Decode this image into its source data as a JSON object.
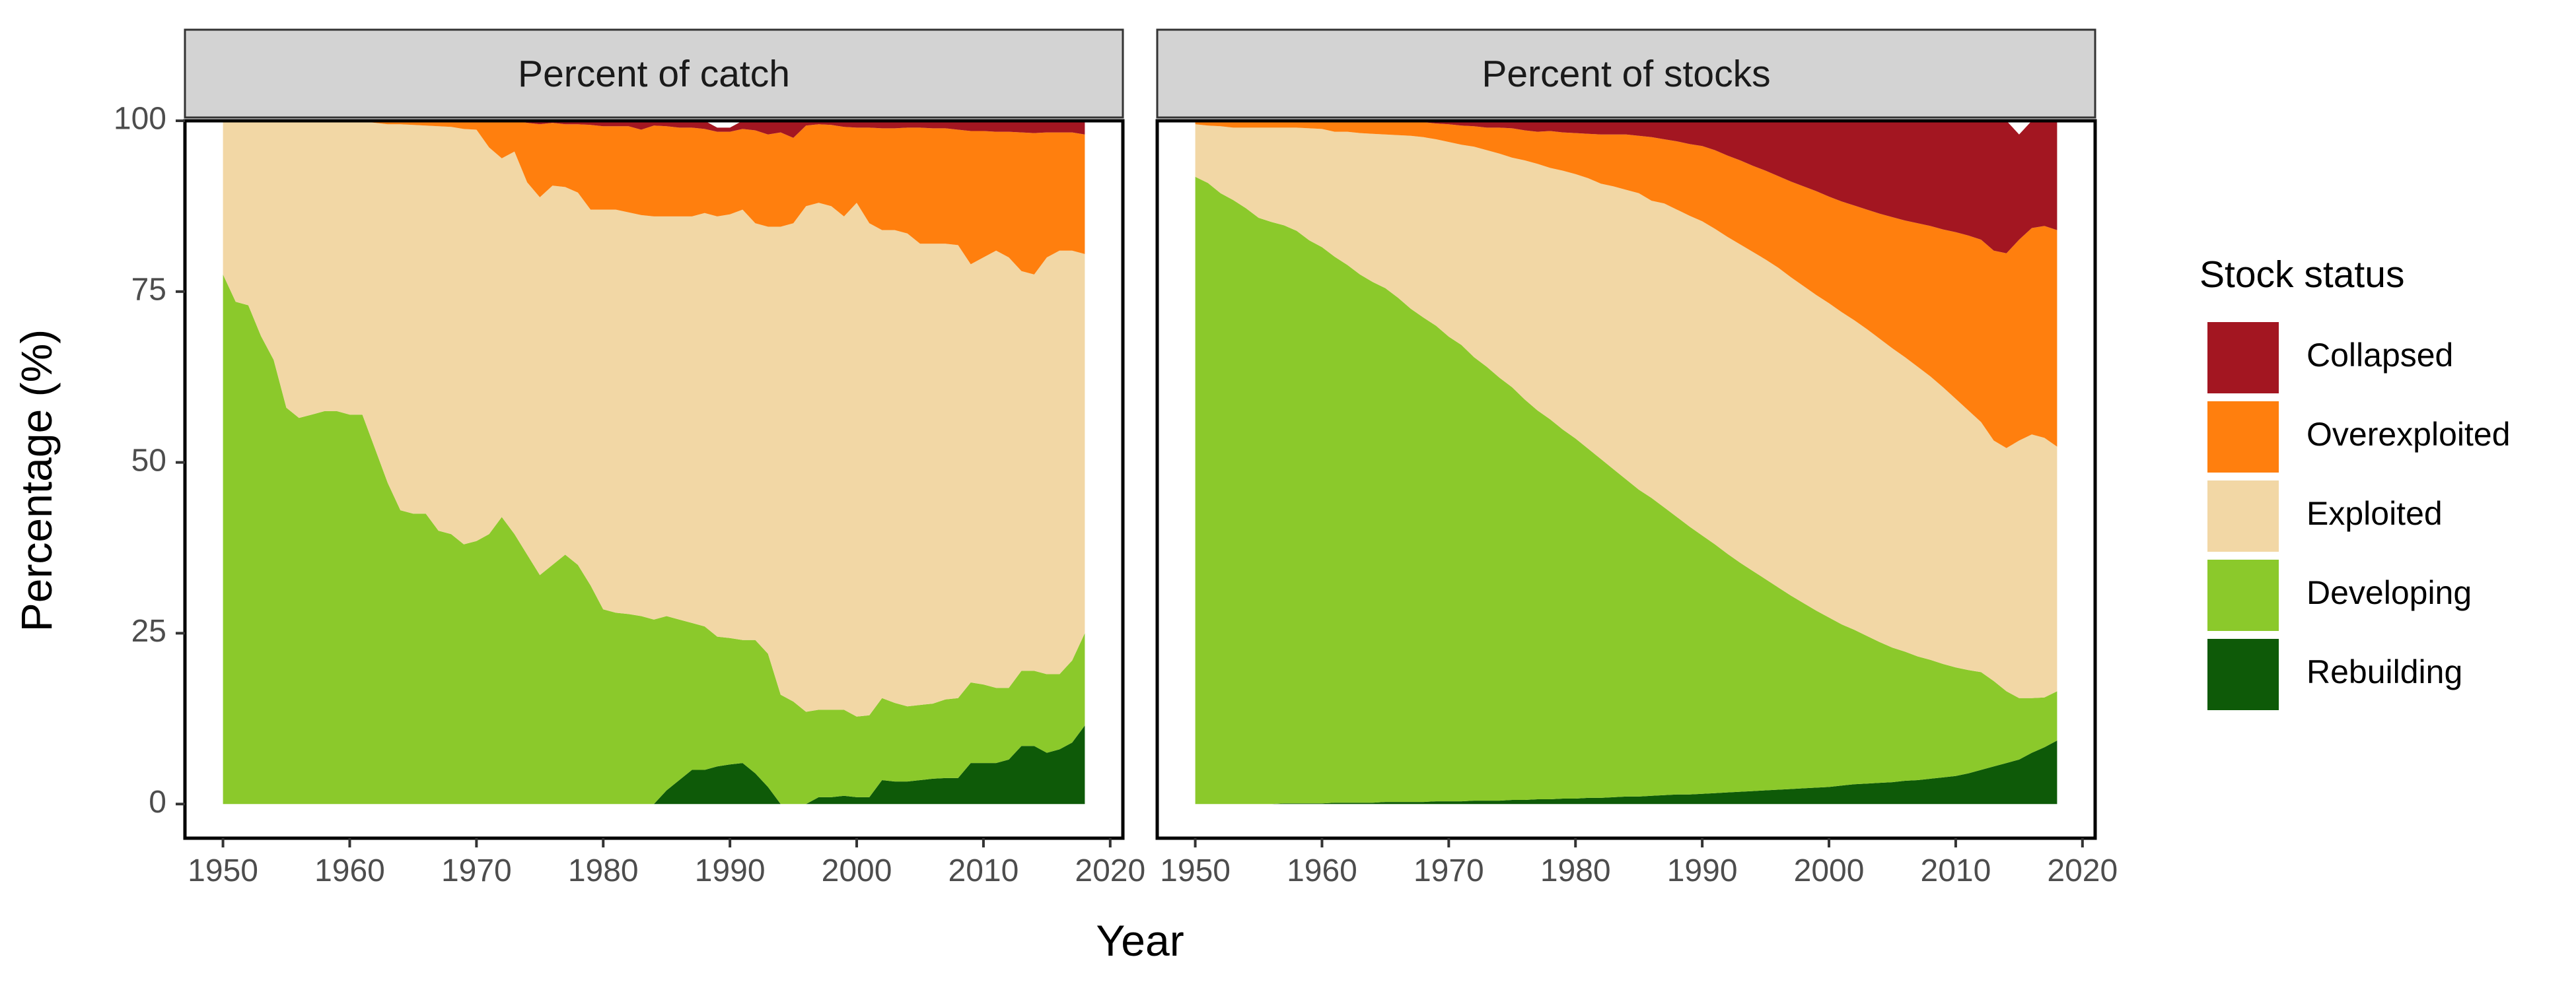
{
  "chart_data": {
    "type": "area",
    "stacked": true,
    "xlabel": "Year",
    "ylabel": "Percentage (%)",
    "xlim": [
      1947,
      2021
    ],
    "ylim": [
      -5,
      100
    ],
    "xticks": [
      1950,
      1960,
      1970,
      1980,
      1990,
      2000,
      2010,
      2020
    ],
    "yticks": [
      0,
      25,
      50,
      75,
      100
    ],
    "legend": {
      "title": "Stock status",
      "position": "right",
      "items": [
        {
          "name": "Collapsed",
          "color": "#A31621"
        },
        {
          "name": "Overexploited",
          "color": "#FF7F0E"
        },
        {
          "name": "Exploited",
          "color": "#F2D7A5"
        },
        {
          "name": "Developing",
          "color": "#8BC92B"
        },
        {
          "name": "Rebuilding",
          "color": "#0E5A08"
        }
      ]
    },
    "stack_order_bottom_to_top": [
      "Rebuilding",
      "Developing",
      "Exploited",
      "Overexploited",
      "Collapsed"
    ],
    "panels": [
      {
        "title": "Percent of catch",
        "x": [
          1950,
          1951,
          1952,
          1953,
          1954,
          1955,
          1956,
          1957,
          1958,
          1959,
          1960,
          1961,
          1962,
          1963,
          1964,
          1965,
          1966,
          1967,
          1968,
          1969,
          1970,
          1971,
          1972,
          1973,
          1974,
          1975,
          1976,
          1977,
          1978,
          1979,
          1980,
          1981,
          1982,
          1983,
          1984,
          1985,
          1986,
          1987,
          1988,
          1989,
          1990,
          1991,
          1992,
          1993,
          1994,
          1995,
          1996,
          1997,
          1998,
          1999,
          2000,
          2001,
          2002,
          2003,
          2004,
          2005,
          2006,
          2007,
          2008,
          2009,
          2010,
          2011,
          2012,
          2013,
          2014,
          2015,
          2016,
          2017,
          2018
        ],
        "series": [
          {
            "name": "Rebuilding",
            "values": [
              0,
              0,
              0,
              0,
              0,
              0,
              0,
              0,
              0,
              0,
              0,
              0,
              0,
              0,
              0,
              0,
              0,
              0,
              0,
              0,
              0,
              0,
              0,
              0,
              0,
              0,
              0,
              0,
              0,
              0,
              0,
              0,
              0,
              0,
              0,
              2,
              3.5,
              5,
              5,
              5.5,
              5.8,
              6,
              4.5,
              2.5,
              0,
              0,
              0,
              1,
              1,
              1.2,
              1,
              1,
              3.5,
              3.3,
              3.3,
              3.5,
              3.7,
              3.8,
              3.8,
              6,
              6,
              6,
              6.5,
              8.5,
              8.5,
              7.5,
              8,
              9,
              11.5
            ]
          },
          {
            "name": "Developing",
            "values": [
              77.5,
              73.5,
              73,
              68.5,
              65,
              58,
              56.5,
              57,
              57.5,
              57.5,
              57,
              57,
              52,
              47,
              43,
              42.5,
              42.5,
              40,
              39.5,
              38,
              38.5,
              39.5,
              42,
              39.5,
              36.5,
              33.5,
              35,
              36.5,
              35,
              32,
              28.5,
              28,
              27.8,
              27.5,
              27,
              25.5,
              23.5,
              21.5,
              21,
              19,
              18.5,
              18,
              19.5,
              19.5,
              16,
              15,
              13.5,
              12.8,
              12.8,
              12.6,
              11.8,
              12,
              12,
              11.5,
              11,
              11,
              11,
              11.5,
              11.7,
              11.8,
              11.5,
              11,
              10.5,
              11,
              11,
              11.5,
              11,
              12,
              13.5
            ]
          },
          {
            "name": "Exploited",
            "values": [
              22.3,
              26.4,
              26.9,
              31.4,
              34.9,
              41.9,
              43.4,
              42.9,
              42.4,
              42.5,
              42.9,
              42.9,
              47.7,
              52.5,
              56.5,
              56.9,
              56.8,
              59.2,
              59.6,
              60.8,
              60.2,
              56.6,
              52.5,
              56,
              54.5,
              55.3,
              55.5,
              53.8,
              54.5,
              55,
              58.5,
              59,
              58.8,
              58.7,
              59,
              58.5,
              59,
              59.5,
              60.5,
              61.5,
              62,
              63,
              61,
              62.5,
              68.5,
              70,
              74,
              74.2,
              73.7,
              72.2,
              75.2,
              72,
              68.5,
              69.2,
              69.2,
              67.5,
              67.3,
              66.7,
              66.3,
              61.2,
              62.5,
              64,
              63,
              58.5,
              58,
              61,
              62,
              60,
              55.5
            ]
          },
          {
            "name": "Overexploited",
            "values": [
              0.2,
              0.1,
              0.1,
              0.1,
              0.1,
              0.1,
              0.1,
              0.1,
              0.1,
              0,
              0.1,
              0.1,
              0.3,
              0.5,
              0.5,
              0.6,
              0.7,
              0.8,
              0.9,
              1.2,
              1.3,
              3.9,
              5.5,
              4.5,
              8.7,
              10.7,
              9.2,
              9.2,
              10,
              12.4,
              12.2,
              12.2,
              12.6,
              12.5,
              13.3,
              13.2,
              13,
              13,
              12.3,
              12.4,
              12.1,
              11.8,
              13.6,
              13.5,
              13.8,
              12.5,
              11.8,
              11.5,
              11.9,
              13.1,
              11,
              14,
              14.9,
              14.9,
              15.5,
              17,
              16.9,
              16.9,
              16.9,
              19.5,
              18.5,
              17.4,
              18.4,
              20.3,
              20.7,
              18.3,
              17.3,
              17.3,
              17.5
            ]
          },
          {
            "name": "Collapsed",
            "values": [
              0,
              0,
              0,
              0,
              0,
              0,
              0,
              0,
              0,
              0,
              0,
              0,
              0,
              0,
              0,
              0,
              0,
              0,
              0,
              0,
              0,
              0,
              0,
              0,
              0.3,
              0.5,
              0.3,
              0.5,
              0.5,
              0.6,
              0.8,
              0.8,
              0.8,
              1.3,
              0.7,
              0.8,
              1,
              1,
              1.2,
              0.6,
              0.6,
              1.2,
              1.4,
              2,
              1.7,
              2.5,
              0.7,
              0.5,
              0.6,
              0.9,
              1,
              1,
              1.1,
              1.1,
              1,
              1,
              1.1,
              1.1,
              1.3,
              1.5,
              1.5,
              1.6,
              1.6,
              1.7,
              1.8,
              1.7,
              1.7,
              1.7,
              2
            ]
          }
        ]
      },
      {
        "title": "Percent of stocks",
        "x": [
          1950,
          1951,
          1952,
          1953,
          1954,
          1955,
          1956,
          1957,
          1958,
          1959,
          1960,
          1961,
          1962,
          1963,
          1964,
          1965,
          1966,
          1967,
          1968,
          1969,
          1970,
          1971,
          1972,
          1973,
          1974,
          1975,
          1976,
          1977,
          1978,
          1979,
          1980,
          1981,
          1982,
          1983,
          1984,
          1985,
          1986,
          1987,
          1988,
          1989,
          1990,
          1991,
          1992,
          1993,
          1994,
          1995,
          1996,
          1997,
          1998,
          1999,
          2000,
          2001,
          2002,
          2003,
          2004,
          2005,
          2006,
          2007,
          2008,
          2009,
          2010,
          2011,
          2012,
          2013,
          2014,
          2015,
          2016,
          2017,
          2018
        ],
        "series": [
          {
            "name": "Rebuilding",
            "values": [
              0,
              0,
              0,
              0,
              0,
              0,
              0,
              0.1,
              0.1,
              0.1,
              0.1,
              0.2,
              0.2,
              0.2,
              0.2,
              0.3,
              0.3,
              0.3,
              0.3,
              0.4,
              0.4,
              0.4,
              0.5,
              0.5,
              0.5,
              0.6,
              0.6,
              0.7,
              0.7,
              0.8,
              0.8,
              0.9,
              0.9,
              1,
              1.1,
              1.1,
              1.2,
              1.3,
              1.4,
              1.4,
              1.5,
              1.6,
              1.7,
              1.8,
              1.9,
              2,
              2.1,
              2.2,
              2.3,
              2.4,
              2.5,
              2.7,
              2.9,
              3,
              3.1,
              3.2,
              3.4,
              3.5,
              3.7,
              3.9,
              4.1,
              4.5,
              5,
              5.5,
              6,
              6.5,
              7.5,
              8.3,
              9.3
            ]
          },
          {
            "name": "Developing",
            "values": [
              91.8,
              90.9,
              89.4,
              88.4,
              87.2,
              85.8,
              85.2,
              84.6,
              83.8,
              82.4,
              81.4,
              79.9,
              78.7,
              77.3,
              76.2,
              75.2,
              73.8,
              72.2,
              70.9,
              69.6,
              68,
              66.8,
              64.9,
              63.5,
              61.9,
              60.4,
              58.6,
              56.9,
              55.6,
              54,
              52.7,
              51.1,
              49.6,
              48,
              46.4,
              44.9,
              43.6,
              42.1,
              40.6,
              39.2,
              37.8,
              36.4,
              34.9,
              33.5,
              32.2,
              30.9,
              29.6,
              28.3,
              27.1,
              25.9,
              24.8,
              23.6,
              22.6,
              21.6,
              20.6,
              19.7,
              18.9,
              18.1,
              17.4,
              16.6,
              15.9,
              15.1,
              14.3,
              12.5,
              10.5,
              9,
              8,
              7.3,
              7.2
            ]
          },
          {
            "name": "Exploited",
            "values": [
              7.7,
              8.4,
              9.8,
              10.6,
              11.8,
              13.2,
              13.8,
              14.3,
              15.1,
              16.4,
              17.3,
              18.3,
              19.5,
              20.7,
              21.7,
              22.5,
              23.8,
              25.3,
              26.4,
              27.3,
              28.5,
              29.3,
              30.8,
              31.7,
              32.8,
              33.6,
              35,
              36.1,
              36.8,
              37.9,
              38.7,
              39.6,
              40.3,
              41.4,
              42.4,
              43.4,
              43.5,
              44.5,
              45,
              45.5,
              46,
              46.2,
              46.4,
              46.6,
              46.7,
              46.8,
              46.8,
              46.6,
              46.4,
              46.2,
              46,
              45.7,
              45.3,
              44.9,
              44.4,
              43.8,
              43.1,
              42.4,
              41.5,
              40.5,
              39.3,
              38,
              36.6,
              35.2,
              35.6,
              37.7,
              38.6,
              38,
              35.8
            ]
          },
          {
            "name": "Overexploited",
            "values": [
              0.5,
              0.7,
              0.8,
              1,
              1,
              1,
              1,
              1,
              1,
              1.1,
              1.2,
              1.6,
              1.6,
              1.8,
              1.9,
              1.8,
              2,
              2,
              2.2,
              2.3,
              2.6,
              2.8,
              3,
              3.3,
              3.8,
              4.3,
              4.4,
              4.7,
              5.4,
              5.6,
              6,
              6.5,
              7.2,
              7.6,
              8.1,
              8.4,
              9.3,
              9.4,
              10,
              10.5,
              11,
              11.5,
              11.9,
              12.3,
              12.6,
              13,
              13.4,
              14,
              14.6,
              15.2,
              15.6,
              16.2,
              16.8,
              17.5,
              18.3,
              19.2,
              20,
              21,
              22,
              23.1,
              24.4,
              25.6,
              26.7,
              27.8,
              28.5,
              29.4,
              30.2,
              31,
              31.7
            ]
          },
          {
            "name": "Collapsed",
            "values": [
              0,
              0,
              0,
              0,
              0,
              0,
              0,
              0,
              0,
              0,
              0,
              0,
              0,
              0,
              0,
              0.2,
              0.1,
              0.2,
              0.2,
              0.4,
              0.5,
              0.7,
              0.8,
              1,
              1,
              1.1,
              1.4,
              1.6,
              1.5,
              1.7,
              1.8,
              1.9,
              2,
              2,
              2,
              2.2,
              2.4,
              2.7,
              3,
              3.4,
              3.7,
              4.3,
              5.1,
              5.8,
              6.6,
              7.3,
              8.1,
              8.9,
              9.6,
              10.3,
              11.1,
              11.8,
              12.4,
              13,
              13.6,
              14.1,
              14.6,
              15,
              15.4,
              15.9,
              16.3,
              16.8,
              17.4,
              19,
              19.4,
              15.4,
              15.7,
              15.4,
              16
            ]
          }
        ]
      }
    ]
  }
}
